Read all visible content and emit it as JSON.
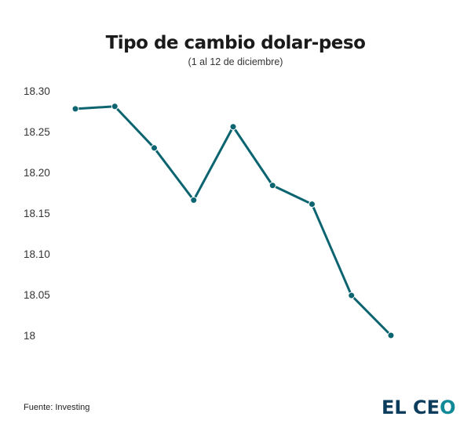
{
  "chart_data": {
    "type": "line",
    "title": "Tipo de cambio dolar-peso",
    "subtitle": "(1 al 12 de diciembre)",
    "xlabel": "",
    "ylabel": "",
    "x": [
      1,
      2,
      3,
      4,
      5,
      6,
      7,
      8,
      9
    ],
    "values": [
      18.278,
      18.281,
      18.23,
      18.166,
      18.256,
      18.184,
      18.161,
      18.049,
      18.0
    ],
    "ylim": [
      18.0,
      18.3
    ],
    "yticks": [
      "18.30",
      "18.25",
      "18.20",
      "18.15",
      "18.10",
      "18.05",
      "18"
    ],
    "ytick_values": [
      18.3,
      18.25,
      18.2,
      18.15,
      18.1,
      18.05,
      18.0
    ],
    "grid": false,
    "markers": true,
    "color": "#0b6470"
  },
  "footer": {
    "source": "Fuente: Investing",
    "logo_left": "EL CE",
    "logo_right": "O"
  }
}
